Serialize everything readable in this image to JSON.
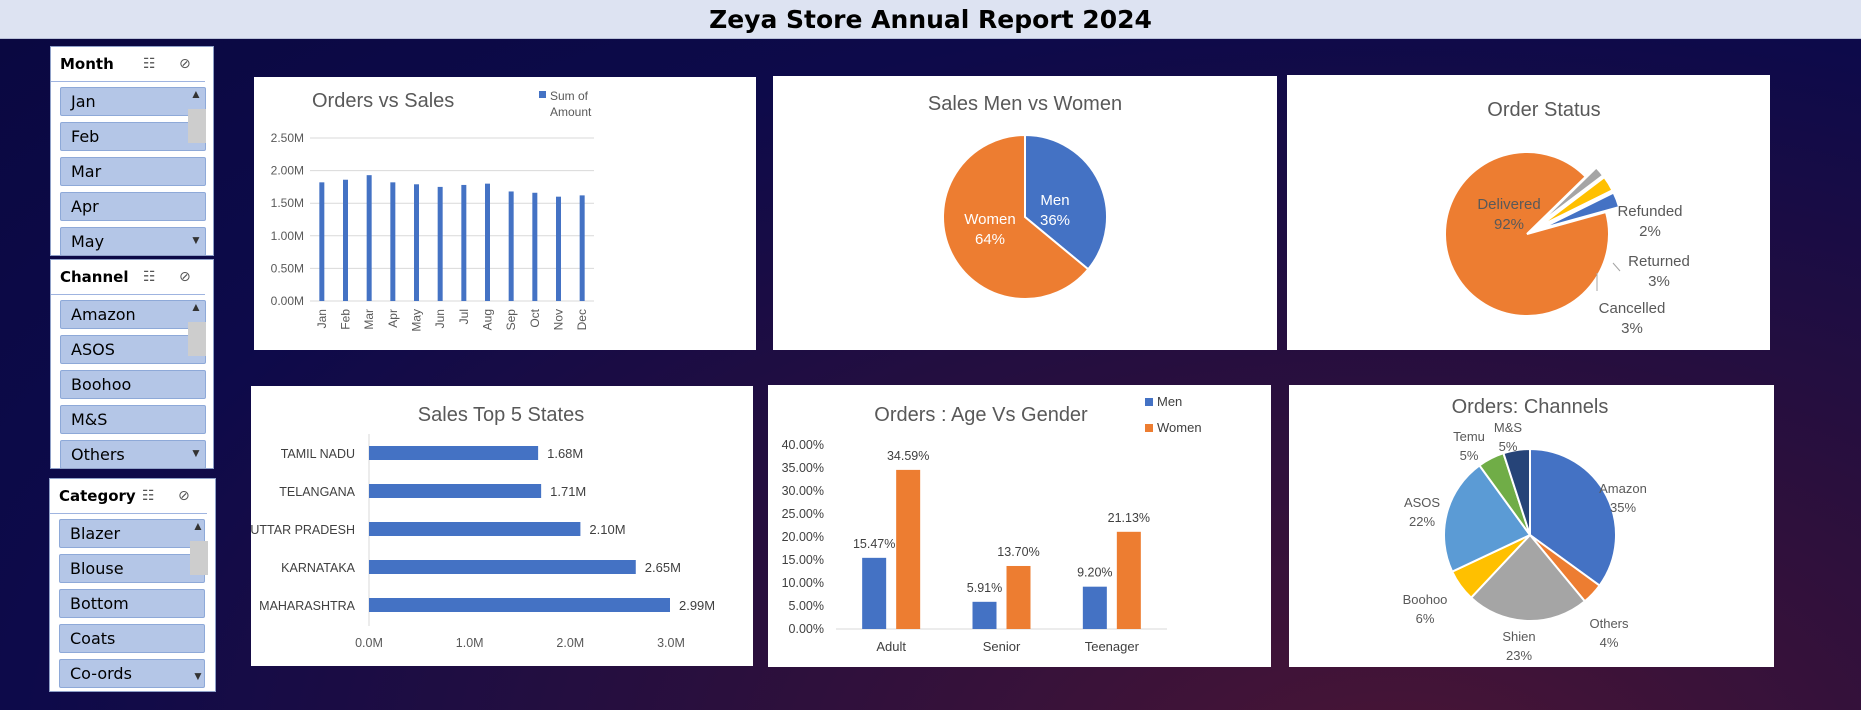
{
  "header": {
    "title": "Zeya Store Annual Report 2024"
  },
  "slicers": [
    {
      "title": "Month",
      "items": [
        "Jan",
        "Feb",
        "Mar",
        "Apr",
        "May"
      ]
    },
    {
      "title": "Channel",
      "items": [
        "Amazon",
        "ASOS",
        "Boohoo",
        "M&S",
        "Others"
      ]
    },
    {
      "title": "Category",
      "items": [
        "Blazer",
        "Blouse",
        "Bottom",
        "Coats",
        "Co-ords"
      ]
    }
  ],
  "icons": {
    "multiselect": "multi-select-icon",
    "clear_filter": "clear-filter-icon",
    "scroll_up": "chevron-up-icon",
    "scroll_down": "chevron-down-icon"
  },
  "colors": {
    "blue": "#4472c4",
    "orange": "#ed7d31",
    "gray": "#a5a5a5",
    "yellow": "#ffc000",
    "lightblue": "#5b9bd5",
    "green": "#70ad47",
    "navy": "#264478"
  },
  "chart_data": [
    {
      "type": "bar",
      "title": "Orders vs Sales",
      "categories": [
        "Jan",
        "Feb",
        "Mar",
        "Apr",
        "May",
        "Jun",
        "Jul",
        "Aug",
        "Sep",
        "Oct",
        "Nov",
        "Dec"
      ],
      "series": [
        {
          "name": "Sum of Amount",
          "values": [
            1.82,
            1.86,
            1.93,
            1.82,
            1.79,
            1.75,
            1.78,
            1.8,
            1.68,
            1.66,
            1.6,
            1.62
          ]
        }
      ],
      "ylim": [
        0,
        2.5
      ],
      "yticks": [
        "0.00M",
        "0.50M",
        "1.00M",
        "1.50M",
        "2.00M",
        "2.50M"
      ],
      "legend": "top-right",
      "grid": true
    },
    {
      "type": "pie",
      "title": "Sales Men vs Women",
      "categories": [
        "Men",
        "Women"
      ],
      "values": [
        36,
        64
      ],
      "labels": [
        "36%",
        "64%"
      ]
    },
    {
      "type": "pie",
      "title": "Order Status",
      "categories": [
        "Delivered",
        "Refunded",
        "Returned",
        "Cancelled"
      ],
      "values": [
        92,
        2,
        3,
        3
      ],
      "labels": [
        "92%",
        "2%",
        "3%",
        "3%"
      ]
    },
    {
      "type": "bar",
      "orientation": "horizontal",
      "title": "Sales Top 5 States",
      "categories": [
        "TAMIL NADU",
        "TELANGANA",
        "UTTAR PRADESH",
        "KARNATAKA",
        "MAHARASHTRA"
      ],
      "values": [
        1.68,
        1.71,
        2.1,
        2.65,
        2.99
      ],
      "labels": [
        "1.68M",
        "1.71M",
        "2.10M",
        "2.65M",
        "2.99M"
      ],
      "xlim": [
        0,
        3
      ],
      "xticks": [
        "0.0M",
        "1.0M",
        "2.0M",
        "3.0M"
      ]
    },
    {
      "type": "bar",
      "title": "Orders : Age Vs Gender",
      "categories": [
        "Adult",
        "Senior",
        "Teenager"
      ],
      "series": [
        {
          "name": "Men",
          "values": [
            15.47,
            5.91,
            9.2
          ],
          "labels": [
            "15.47%",
            "5.91%",
            "9.20%"
          ]
        },
        {
          "name": "Women",
          "values": [
            34.59,
            13.7,
            21.13
          ],
          "labels": [
            "34.59%",
            "13.70%",
            "21.13%"
          ]
        }
      ],
      "ylim": [
        0,
        40
      ],
      "yticks": [
        "0.00%",
        "5.00%",
        "10.00%",
        "15.00%",
        "20.00%",
        "25.00%",
        "30.00%",
        "35.00%",
        "40.00%"
      ],
      "legend": "top-right"
    },
    {
      "type": "pie",
      "title": "Orders: Channels",
      "categories": [
        "Amazon",
        "Others",
        "Shien",
        "Boohoo",
        "ASOS",
        "Temu",
        "M&S"
      ],
      "values": [
        35,
        4,
        23,
        6,
        22,
        5,
        5
      ],
      "labels": [
        "35%",
        "4%",
        "23%",
        "6%",
        "22%",
        "5%",
        "5%"
      ]
    }
  ]
}
